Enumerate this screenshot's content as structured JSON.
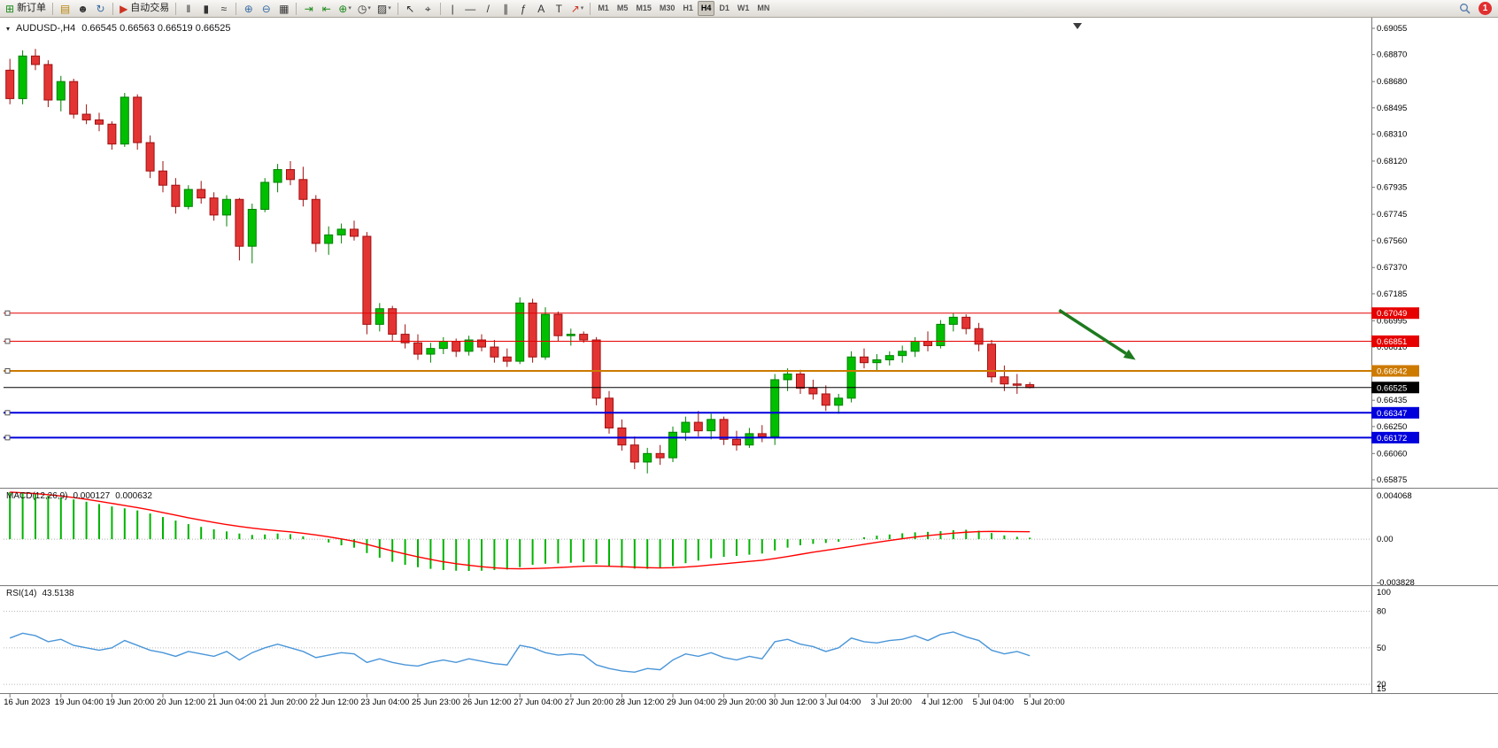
{
  "toolbar": {
    "new_order_label": "新订单",
    "autotrading_label": "自动交易",
    "timeframes": [
      "M1",
      "M5",
      "M15",
      "M30",
      "H1",
      "H4",
      "D1",
      "W1",
      "MN"
    ],
    "active_timeframe": "H4",
    "notification_count": "1",
    "glyphs": {
      "new_order": "⊞",
      "charts_folder": "▤",
      "profiles": "☻",
      "history_center": "↻",
      "autotrading": "▶",
      "chart_bars": "‖",
      "chart_candles": "▮",
      "chart_line": "≈",
      "zoom_in": "⊕",
      "zoom_out": "⊖",
      "tile_windows": "▦",
      "auto_scroll": "⇥",
      "chart_shift": "⇤",
      "indicators": "⊕",
      "periods": "◷",
      "templates": "▨",
      "cursor": "↖",
      "crosshair": "⌖",
      "vline": "|",
      "hline": "—",
      "trendline": "/",
      "channel": "∥",
      "fibonacci": "ƒ",
      "text": "A",
      "label": "T",
      "arrows": "↗",
      "dropdown": "▾"
    }
  },
  "chart": {
    "marker": "▾",
    "symbol_period": "AUDUSD-,H4",
    "ohlc_text": "0.66545 0.66563 0.66519 0.66525",
    "macd": {
      "name": "MACD(12,26,9)",
      "value_main": "0.000127",
      "value_signal": "0.000632"
    },
    "rsi": {
      "name": "RSI(14)",
      "value": "43.5138"
    }
  },
  "chart_data": {
    "type": "candlestick",
    "symbol": "AUDUSD-",
    "timeframe": "H4",
    "current_ohlc": {
      "open": 0.66545,
      "high": 0.66563,
      "low": 0.66519,
      "close": 0.66525
    },
    "price_axis": {
      "top": 0.69055,
      "bottom": 0.65875,
      "labels": [
        "0.69055",
        "0.68870",
        "0.68680",
        "0.68495",
        "0.68310",
        "0.68120",
        "0.67935",
        "0.67745",
        "0.67560",
        "0.67370",
        "0.67185",
        "0.66995",
        "0.66810",
        "0.66620",
        "0.66435",
        "0.66250",
        "0.66060",
        "0.65875"
      ]
    },
    "time_labels": [
      "16 Jun 2023",
      "19 Jun 04:00",
      "19 Jun 20:00",
      "20 Jun 12:00",
      "21 Jun 04:00",
      "21 Jun 20:00",
      "22 Jun 12:00",
      "23 Jun 04:00",
      "25 Jun 23:00",
      "26 Jun 12:00",
      "27 Jun 04:00",
      "27 Jun 20:00",
      "28 Jun 12:00",
      "29 Jun 04:00",
      "29 Jun 20:00",
      "30 Jun 12:00",
      "3 Jul 04:00",
      "3 Jul 20:00",
      "4 Jul 12:00",
      "5 Jul 04:00",
      "5 Jul 20:00"
    ],
    "candle_colors": {
      "up": "#00bf00",
      "down": "#e33434",
      "up_border": "#008000",
      "down_border": "#a01010"
    },
    "candles": [
      [
        0.6876,
        0.6884,
        0.6852,
        0.6856
      ],
      [
        0.6856,
        0.689,
        0.6852,
        0.6886
      ],
      [
        0.6886,
        0.6891,
        0.6876,
        0.688
      ],
      [
        0.688,
        0.6883,
        0.685,
        0.6855
      ],
      [
        0.6855,
        0.6872,
        0.6847,
        0.6868
      ],
      [
        0.6868,
        0.687,
        0.6842,
        0.6845
      ],
      [
        0.6845,
        0.6852,
        0.6838,
        0.6841
      ],
      [
        0.6841,
        0.6846,
        0.6833,
        0.6838
      ],
      [
        0.6838,
        0.684,
        0.682,
        0.6824
      ],
      [
        0.6824,
        0.686,
        0.6822,
        0.6857
      ],
      [
        0.6857,
        0.6859,
        0.682,
        0.6825
      ],
      [
        0.6825,
        0.683,
        0.68,
        0.6805
      ],
      [
        0.6805,
        0.6812,
        0.679,
        0.6795
      ],
      [
        0.6795,
        0.68,
        0.6775,
        0.678
      ],
      [
        0.678,
        0.6795,
        0.6778,
        0.6792
      ],
      [
        0.6792,
        0.6798,
        0.6782,
        0.6786
      ],
      [
        0.6786,
        0.679,
        0.677,
        0.6774
      ],
      [
        0.6774,
        0.6788,
        0.6766,
        0.6785
      ],
      [
        0.6785,
        0.6786,
        0.6742,
        0.6752
      ],
      [
        0.6752,
        0.6782,
        0.674,
        0.6778
      ],
      [
        0.6778,
        0.68,
        0.6776,
        0.6797
      ],
      [
        0.6797,
        0.681,
        0.679,
        0.6806
      ],
      [
        0.6806,
        0.6812,
        0.6795,
        0.6799
      ],
      [
        0.6799,
        0.6808,
        0.678,
        0.6785
      ],
      [
        0.6785,
        0.6788,
        0.6748,
        0.6754
      ],
      [
        0.6754,
        0.6766,
        0.6746,
        0.676
      ],
      [
        0.676,
        0.6768,
        0.6754,
        0.6764
      ],
      [
        0.6764,
        0.677,
        0.6756,
        0.6759
      ],
      [
        0.6759,
        0.6762,
        0.669,
        0.6697
      ],
      [
        0.6697,
        0.6712,
        0.6692,
        0.6708
      ],
      [
        0.6708,
        0.671,
        0.6685,
        0.669
      ],
      [
        0.669,
        0.6697,
        0.668,
        0.6684
      ],
      [
        0.6684,
        0.669,
        0.6672,
        0.6676
      ],
      [
        0.6676,
        0.6684,
        0.667,
        0.668
      ],
      [
        0.668,
        0.6688,
        0.6676,
        0.6685
      ],
      [
        0.6685,
        0.6687,
        0.6674,
        0.6678
      ],
      [
        0.6678,
        0.6689,
        0.6675,
        0.6686
      ],
      [
        0.6686,
        0.669,
        0.6678,
        0.6681
      ],
      [
        0.6681,
        0.6686,
        0.667,
        0.6674
      ],
      [
        0.6674,
        0.668,
        0.6667,
        0.6671
      ],
      [
        0.6671,
        0.6716,
        0.6669,
        0.6712
      ],
      [
        0.6712,
        0.6715,
        0.667,
        0.6674
      ],
      [
        0.6674,
        0.6709,
        0.6672,
        0.6704
      ],
      [
        0.6704,
        0.6706,
        0.6685,
        0.6689
      ],
      [
        0.6689,
        0.6694,
        0.6682,
        0.669
      ],
      [
        0.669,
        0.6692,
        0.6684,
        0.6686
      ],
      [
        0.6686,
        0.6688,
        0.664,
        0.6645
      ],
      [
        0.6645,
        0.665,
        0.662,
        0.6624
      ],
      [
        0.6624,
        0.663,
        0.6608,
        0.6612
      ],
      [
        0.6612,
        0.6618,
        0.6595,
        0.66
      ],
      [
        0.66,
        0.661,
        0.6592,
        0.6606
      ],
      [
        0.6606,
        0.6612,
        0.6598,
        0.6603
      ],
      [
        0.6603,
        0.6625,
        0.66,
        0.6621
      ],
      [
        0.6621,
        0.6632,
        0.6615,
        0.6628
      ],
      [
        0.6628,
        0.6636,
        0.6618,
        0.6622
      ],
      [
        0.6622,
        0.6634,
        0.6616,
        0.663
      ],
      [
        0.663,
        0.6632,
        0.6612,
        0.6616
      ],
      [
        0.6616,
        0.6622,
        0.6608,
        0.6612
      ],
      [
        0.6612,
        0.6624,
        0.661,
        0.662
      ],
      [
        0.662,
        0.6626,
        0.6614,
        0.6618
      ],
      [
        0.6618,
        0.6662,
        0.6612,
        0.6658
      ],
      [
        0.6658,
        0.6666,
        0.665,
        0.6662
      ],
      [
        0.6662,
        0.6665,
        0.6648,
        0.6652
      ],
      [
        0.6652,
        0.6658,
        0.6644,
        0.6648
      ],
      [
        0.6648,
        0.6654,
        0.6636,
        0.664
      ],
      [
        0.664,
        0.6648,
        0.6634,
        0.6645
      ],
      [
        0.6645,
        0.6678,
        0.6642,
        0.6674
      ],
      [
        0.6674,
        0.668,
        0.6666,
        0.667
      ],
      [
        0.667,
        0.6676,
        0.6664,
        0.6672
      ],
      [
        0.6672,
        0.6678,
        0.6668,
        0.6675
      ],
      [
        0.6675,
        0.6682,
        0.667,
        0.6678
      ],
      [
        0.6678,
        0.6688,
        0.6674,
        0.6685
      ],
      [
        0.6685,
        0.6692,
        0.6678,
        0.6682
      ],
      [
        0.6682,
        0.67,
        0.668,
        0.6697
      ],
      [
        0.6697,
        0.67049,
        0.6692,
        0.6702
      ],
      [
        0.6702,
        0.6704,
        0.669,
        0.6694
      ],
      [
        0.6694,
        0.6698,
        0.6678,
        0.6683
      ],
      [
        0.6683,
        0.6686,
        0.6656,
        0.666
      ],
      [
        0.666,
        0.6668,
        0.665,
        0.6655
      ],
      [
        0.6655,
        0.6662,
        0.6648,
        0.66545
      ],
      [
        0.66545,
        0.66563,
        0.66519,
        0.66525
      ]
    ],
    "hlines": [
      {
        "price": 0.67049,
        "label": "0.67049",
        "color": "#e60000",
        "width": 1
      },
      {
        "price": 0.66851,
        "label": "0.66851",
        "color": "#e60000",
        "width": 1
      },
      {
        "price": 0.66642,
        "label": "0.66642",
        "color": "#cc7a00",
        "width": 2
      },
      {
        "price": 0.66347,
        "label": "0.66347",
        "color": "#0000dd",
        "width": 2
      },
      {
        "price": 0.66172,
        "label": "0.66172",
        "color": "#0000dd",
        "width": 2
      }
    ],
    "price_line": {
      "price": 0.66525,
      "label": "0.66525",
      "color": "#000000"
    },
    "trend_arrow": {
      "from_bar": 82.3,
      "from_price": 0.6707,
      "to_bar": 88.3,
      "to_price": 0.6672,
      "color": "#1e7a1e"
    },
    "macd": {
      "max": 0.004068,
      "min": -0.003828,
      "scale_labels": [
        "0.004068",
        "0.00",
        "-0.003828"
      ],
      "histogram_color": "#00b300",
      "signal_color": "#ff0000",
      "histogram": [
        0.004,
        0.00392,
        0.00383,
        0.0037,
        0.00355,
        0.00338,
        0.00318,
        0.00298,
        0.00278,
        0.00262,
        0.00244,
        0.00218,
        0.00188,
        0.00158,
        0.00128,
        0.00104,
        0.00084,
        0.00066,
        0.00048,
        0.00036,
        0.0004,
        0.00048,
        0.00042,
        0.00024,
        0.0,
        -0.00028,
        -0.00052,
        -0.00072,
        -0.00118,
        -0.00158,
        -0.00192,
        -0.00218,
        -0.00238,
        -0.00252,
        -0.00262,
        -0.00268,
        -0.0027,
        -0.00268,
        -0.00262,
        -0.00258,
        -0.00238,
        -0.00218,
        -0.00208,
        -0.00206,
        -0.002,
        -0.00194,
        -0.0021,
        -0.00228,
        -0.00242,
        -0.0025,
        -0.00252,
        -0.00246,
        -0.00228,
        -0.00204,
        -0.00182,
        -0.00162,
        -0.0015,
        -0.00142,
        -0.00132,
        -0.00122,
        -0.00096,
        -0.00072,
        -0.00052,
        -0.0004,
        -0.00032,
        -0.00022,
        -4e-05,
        0.00016,
        0.0003,
        0.0004,
        0.0005,
        0.00058,
        0.00062,
        0.00068,
        0.00076,
        0.0008,
        0.00072,
        0.00052,
        0.00032,
        0.0002,
        0.000127
      ],
      "signal": [
        0.004,
        0.00394,
        0.00387,
        0.00378,
        0.00367,
        0.00354,
        0.00339,
        0.00322,
        0.00304,
        0.00286,
        0.00268,
        0.00248,
        0.00226,
        0.00204,
        0.00182,
        0.00162,
        0.00142,
        0.00124,
        0.00108,
        0.00094,
        0.00082,
        0.00072,
        0.00062,
        0.0005,
        0.00036,
        0.0002,
        2e-05,
        -0.00018,
        -0.00044,
        -0.00072,
        -0.001,
        -0.00126,
        -0.0015,
        -0.00172,
        -0.00192,
        -0.00208,
        -0.00222,
        -0.00234,
        -0.00243,
        -0.0025,
        -0.00252,
        -0.0025,
        -0.00246,
        -0.00241,
        -0.00236,
        -0.0023,
        -0.00228,
        -0.0023,
        -0.00234,
        -0.00238,
        -0.00242,
        -0.00244,
        -0.00242,
        -0.00237,
        -0.00229,
        -0.00219,
        -0.00209,
        -0.00199,
        -0.00189,
        -0.00179,
        -0.00164,
        -0.00147,
        -0.00129,
        -0.00111,
        -0.00095,
        -0.00079,
        -0.00062,
        -0.00044,
        -0.00027,
        -0.00011,
        4e-05,
        0.00018,
        0.0003,
        0.00041,
        0.00051,
        0.00059,
        0.00064,
        0.00066,
        0.00065,
        0.00064,
        0.000632
      ]
    },
    "rsi": {
      "max": 100,
      "min": 15,
      "levels": [
        80,
        50,
        20
      ],
      "scale_labels": [
        "100",
        "80",
        "50",
        "20",
        "15"
      ],
      "line_color": "#4a96d9",
      "values": [
        58,
        62,
        60,
        55,
        57,
        52,
        50,
        48,
        50,
        56,
        52,
        48,
        46,
        43,
        47,
        45,
        43,
        47,
        40,
        46,
        50,
        53,
        50,
        47,
        42,
        44,
        46,
        45,
        38,
        41,
        38,
        36,
        35,
        38,
        40,
        38,
        41,
        39,
        37,
        36,
        52,
        50,
        46,
        44,
        45,
        44,
        36,
        33,
        31,
        30,
        33,
        32,
        40,
        45,
        43,
        46,
        42,
        40,
        43,
        41,
        55,
        57,
        53,
        51,
        47,
        50,
        58,
        55,
        54,
        56,
        57,
        60,
        56,
        61,
        63,
        59,
        56,
        48,
        45,
        47,
        43.5138
      ]
    }
  }
}
